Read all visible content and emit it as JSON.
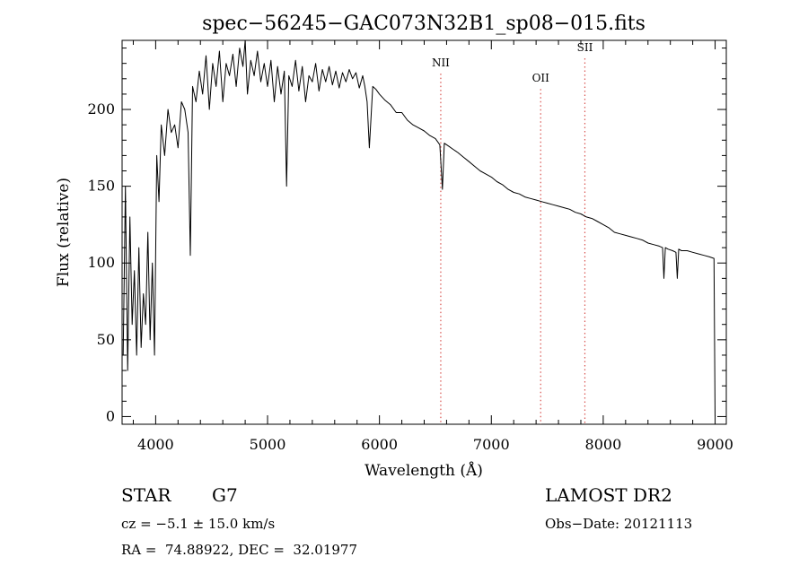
{
  "chart_data": {
    "type": "line",
    "title": "spec−56245−GAC073N32B1_sp08−015.fits",
    "xlabel": "Wavelength (Å)",
    "ylabel": "Flux (relative)",
    "xlim": [
      3700,
      9100
    ],
    "ylim": [
      -5,
      245
    ],
    "xticks": [
      "4000",
      "5000",
      "6000",
      "7000",
      "8000",
      "9000"
    ],
    "xtick_values": [
      4000,
      5000,
      6000,
      7000,
      8000,
      9000
    ],
    "yticks": [
      "0",
      "50",
      "100",
      "150",
      "200"
    ],
    "ytick_values": [
      0,
      50,
      100,
      150,
      200
    ],
    "grid": false,
    "line_color": "#000000",
    "marker_color": "#d9534f",
    "series": [
      {
        "x": [
          3710,
          3730,
          3750,
          3770,
          3790,
          3810,
          3830,
          3850,
          3870,
          3890,
          3910,
          3930,
          3950,
          3970,
          3990,
          4010,
          4030,
          4050,
          4080,
          4110,
          4140,
          4170,
          4200,
          4230,
          4260,
          4290,
          4310,
          4330,
          4360,
          4390,
          4420,
          4450,
          4480,
          4510,
          4540,
          4570,
          4600,
          4630,
          4660,
          4690,
          4720,
          4750,
          4780,
          4800,
          4820,
          4850,
          4880,
          4910,
          4940,
          4970,
          5000,
          5030,
          5060,
          5090,
          5120,
          5150,
          5170,
          5190,
          5220,
          5250,
          5280,
          5310,
          5340,
          5370,
          5400,
          5430,
          5460,
          5490,
          5520,
          5550,
          5580,
          5610,
          5640,
          5670,
          5700,
          5730,
          5760,
          5790,
          5820,
          5850,
          5870,
          5890,
          5910,
          5940,
          5970,
          6000,
          6050,
          6100,
          6150,
          6200,
          6250,
          6300,
          6350,
          6400,
          6450,
          6500,
          6540,
          6563,
          6580,
          6620,
          6660,
          6700,
          6750,
          6800,
          6850,
          6900,
          6950,
          7000,
          7050,
          7100,
          7150,
          7200,
          7250,
          7300,
          7350,
          7400,
          7450,
          7500,
          7550,
          7600,
          7650,
          7700,
          7750,
          7800,
          7850,
          7900,
          7950,
          8000,
          8050,
          8100,
          8150,
          8200,
          8250,
          8300,
          8350,
          8400,
          8450,
          8500,
          8530,
          8542,
          8555,
          8580,
          8620,
          8650,
          8662,
          8675,
          8700,
          8750,
          8800,
          8850,
          8900,
          8950,
          8990,
          9000
        ],
        "y": [
          40,
          150,
          30,
          130,
          60,
          95,
          40,
          110,
          45,
          80,
          60,
          120,
          50,
          100,
          40,
          170,
          140,
          190,
          170,
          200,
          185,
          190,
          175,
          205,
          200,
          185,
          105,
          215,
          205,
          225,
          210,
          235,
          200,
          230,
          215,
          238,
          205,
          230,
          222,
          236,
          215,
          240,
          228,
          245,
          210,
          232,
          222,
          238,
          218,
          230,
          215,
          232,
          205,
          228,
          210,
          225,
          150,
          222,
          215,
          232,
          212,
          228,
          205,
          222,
          218,
          230,
          212,
          226,
          218,
          228,
          216,
          225,
          214,
          224,
          218,
          226,
          220,
          224,
          214,
          222,
          215,
          205,
          175,
          215,
          213,
          210,
          206,
          203,
          198,
          198,
          193,
          190,
          188,
          186,
          183,
          181,
          177,
          148,
          178,
          176,
          174,
          172,
          169,
          166,
          163,
          160,
          158,
          156,
          153,
          151,
          148,
          146,
          145,
          143,
          142,
          141,
          140,
          139,
          138,
          137,
          136,
          135,
          133,
          132,
          130,
          129,
          127,
          125,
          123,
          120,
          119,
          118,
          117,
          116,
          115,
          113,
          112,
          111,
          110,
          90,
          110,
          109,
          108,
          107,
          90,
          109,
          108,
          108,
          107,
          106,
          105,
          104,
          103,
          0
        ]
      }
    ],
    "annotations": [
      {
        "label": "NII",
        "x": 6548,
        "label_y": 228
      },
      {
        "label": "OII",
        "x": 7441,
        "label_y": 218
      },
      {
        "label": "SII",
        "x": 7836,
        "label_y": 238
      }
    ]
  },
  "info": {
    "object_class": "STAR",
    "subclass": "G7",
    "cz": "cz = −5.1 ± 15.0 km/s",
    "radec": "RA =  74.88922, DEC =  32.01977",
    "survey": "LAMOST DR2",
    "obs_date": "Obs−Date: 20121113"
  }
}
